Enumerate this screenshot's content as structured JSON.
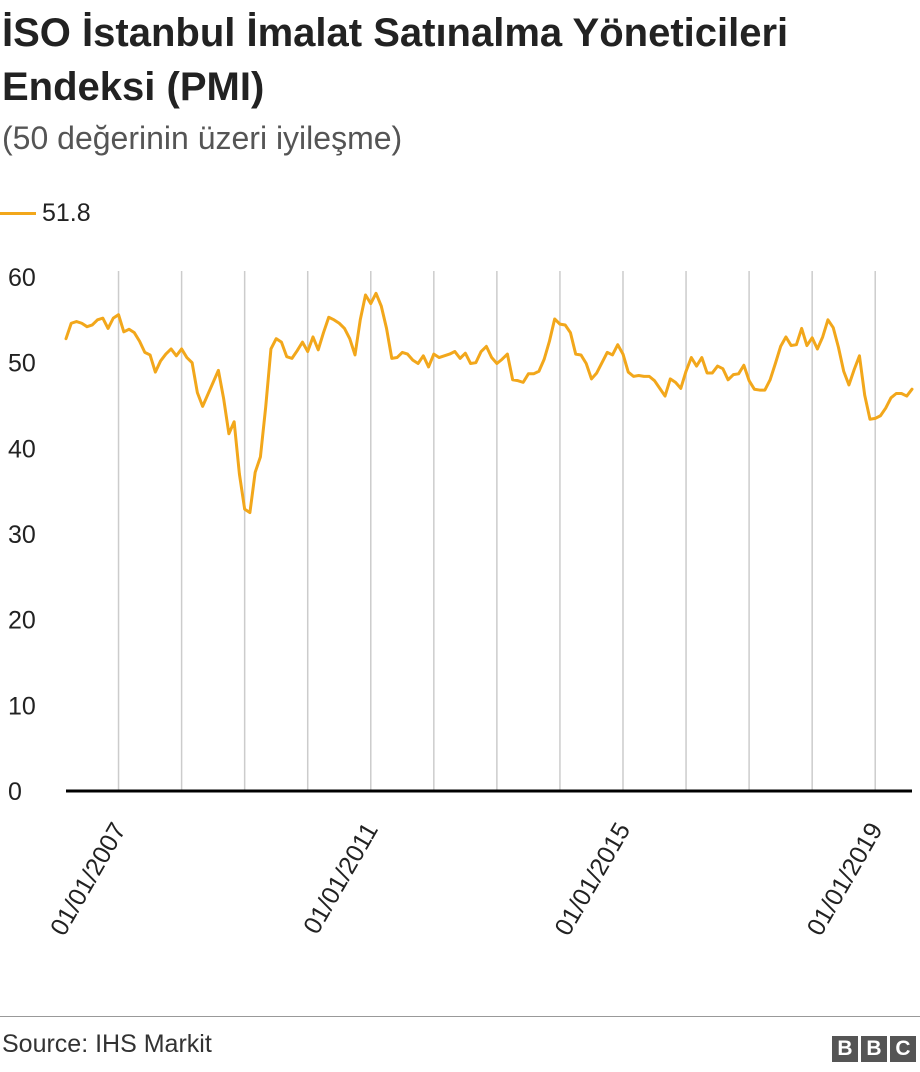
{
  "header": {
    "title": "İSO İstanbul İmalat Satınalma Yöneticileri Endeksi (PMI)",
    "subtitle": "(50 değerinin üzeri iyileşme)"
  },
  "footer": {
    "source": "Source: IHS Markit",
    "logo": [
      "B",
      "B",
      "C"
    ]
  },
  "chart_data": {
    "type": "line",
    "x_start": "2006-03",
    "x_axis_type": "date-monthly",
    "ylim": [
      0,
      60
    ],
    "yticks": [
      0,
      10,
      20,
      30,
      40,
      50,
      60
    ],
    "xtick_labels": [
      "01/01/2007",
      "01/01/2011",
      "01/01/2015",
      "01/01/2019"
    ],
    "grid": "vertical",
    "legend_position": "top-left",
    "colors": {
      "line": "#f2a71b",
      "grid": "#cccccc",
      "baseline": "#000000"
    },
    "series": [
      {
        "name": "51.8",
        "values": [
          52.8,
          54.6,
          54.8,
          54.6,
          54.2,
          54.4,
          55.0,
          55.2,
          54.0,
          55.2,
          55.6,
          53.6,
          53.9,
          53.5,
          52.5,
          51.2,
          50.9,
          48.9,
          50.2,
          51.0,
          51.6,
          50.8,
          51.6,
          50.6,
          50.0,
          46.5,
          44.9,
          46.3,
          47.7,
          49.1,
          45.8,
          41.7,
          43.1,
          37.0,
          32.9,
          32.5,
          37.2,
          39.0,
          44.8,
          51.6,
          52.8,
          52.4,
          50.7,
          50.5,
          51.4,
          52.4,
          51.3,
          53.0,
          51.5,
          53.5,
          55.3,
          55.0,
          54.6,
          54.0,
          52.8,
          50.9,
          55.0,
          57.9,
          56.9,
          58.1,
          56.6,
          54.0,
          50.5,
          50.6,
          51.2,
          51.0,
          50.3,
          49.9,
          50.8,
          49.5,
          51.0,
          50.6,
          50.8,
          51.0,
          51.3,
          50.5,
          51.1,
          49.9,
          50.0,
          51.3,
          51.9,
          50.6,
          49.9,
          50.4,
          51.0,
          48.0,
          47.9,
          47.7,
          48.7,
          48.7,
          49.0,
          50.4,
          52.5,
          55.1,
          54.5,
          54.4,
          53.5,
          51.0,
          50.9,
          49.9,
          48.1,
          48.8,
          50.0,
          51.2,
          50.9,
          52.1,
          51.0,
          48.9,
          48.4,
          48.5,
          48.4,
          48.4,
          47.9,
          47.0,
          46.1,
          48.1,
          47.7,
          47.0,
          49.0,
          50.6,
          49.6,
          50.6,
          48.8,
          48.8,
          49.6,
          49.3,
          48.0,
          48.6,
          48.7,
          49.7,
          47.9,
          46.9,
          46.8,
          46.8,
          48.0,
          49.9,
          51.9,
          53.0,
          52.0,
          52.1,
          54.0,
          52.0,
          52.9,
          51.6,
          53.0,
          55.0,
          54.1,
          51.8,
          49.0,
          47.4,
          49.2,
          50.8,
          46.2,
          43.4,
          43.5,
          43.8,
          44.7,
          45.9,
          46.4,
          46.4,
          46.1,
          46.9
        ]
      }
    ]
  }
}
